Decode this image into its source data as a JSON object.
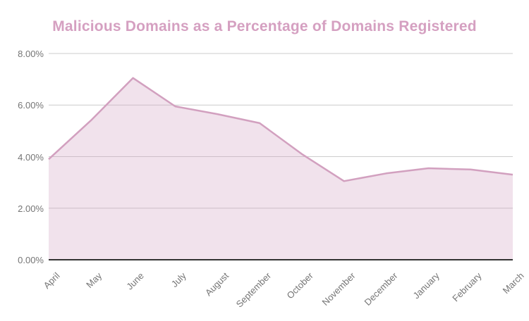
{
  "chart_data": {
    "type": "area",
    "title": "Malicious Domains as a Percentage of Domains Registered",
    "categories": [
      "April",
      "May",
      "June",
      "July",
      "August",
      "September",
      "October",
      "November",
      "December",
      "January",
      "February",
      "March"
    ],
    "values": [
      3.9,
      5.4,
      7.05,
      5.95,
      5.65,
      5.3,
      4.1,
      3.05,
      3.35,
      3.55,
      3.5,
      3.3
    ],
    "xlabel": "",
    "ylabel": "",
    "ylim": [
      0,
      8
    ],
    "yticks": [
      {
        "value": 8,
        "label": "8.00%"
      },
      {
        "value": 6,
        "label": "6.00%"
      },
      {
        "value": 4,
        "label": "4.00%"
      },
      {
        "value": 2,
        "label": "2.00%"
      },
      {
        "value": 0,
        "label": "0.00%"
      }
    ],
    "grid": true,
    "legend": "none"
  },
  "colors": {
    "title": "#d5a0c1",
    "line": "#d2a0bf",
    "area_fill": "#d2a0bf",
    "area_fill_opacity": 0.3,
    "gridline": "#cccccc",
    "baseline": "#333333",
    "axis_text": "#757575",
    "background": "#ffffff"
  }
}
